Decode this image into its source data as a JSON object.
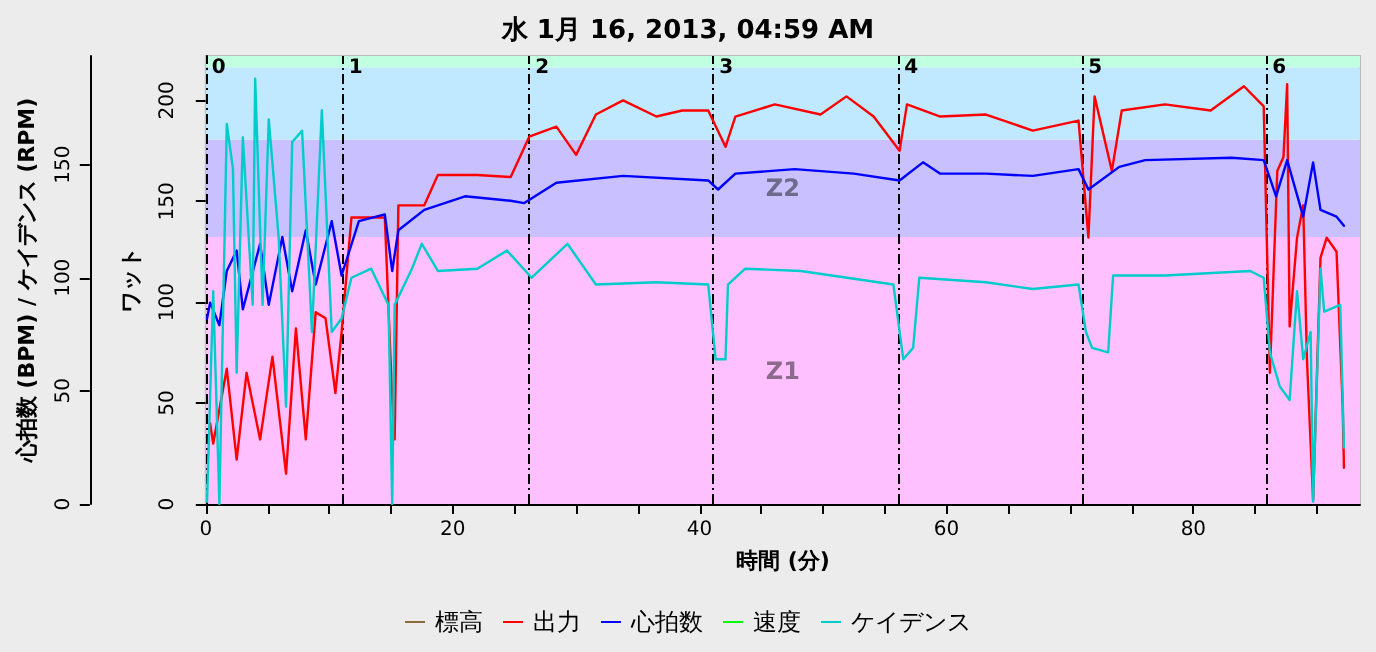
{
  "chart_data": {
    "type": "line",
    "title": "水 1月 16, 2013, 04:59 AM",
    "xlabel": "時間 (分)",
    "ylabel": "ワット",
    "y2label": "心拍数 (BPM) / ケイデンス (RPM)",
    "xlim": [
      0,
      93.5
    ],
    "xticks": [
      0,
      {
        "value": 5,
        "label": null
      },
      {
        "value": 10,
        "label": null
      },
      {
        "value": 15,
        "label": null
      },
      20,
      {
        "value": 25,
        "label": null
      },
      {
        "value": 30,
        "label": null
      },
      {
        "value": 35,
        "label": null
      },
      40,
      {
        "value": 45,
        "label": null
      },
      {
        "value": 50,
        "label": null
      },
      {
        "value": 55,
        "label": null
      },
      60,
      {
        "value": 65,
        "label": null
      },
      {
        "value": 70,
        "label": null
      },
      {
        "value": 75,
        "label": null
      },
      80,
      {
        "value": 85,
        "label": null
      },
      {
        "value": 90,
        "label": null
      }
    ],
    "ylim": [
      0,
      222
    ],
    "yticks": [
      0,
      50,
      100,
      150,
      200
    ],
    "y2lim": [
      0,
      198
    ],
    "y2ticks": [
      0,
      50,
      100,
      150
    ],
    "grid": "y",
    "legend": "bottom",
    "marker": "none",
    "line_style": "solid",
    "series": [
      {
        "name": "標高",
        "color": "#8b6a3c"
      },
      {
        "name": "出力",
        "color": "#ff0000",
        "x": [
          0.35,
          0.6,
          1.7,
          2.5,
          3.3,
          4.4,
          5.4,
          6.5,
          7.3,
          8.1,
          8.9,
          9.7,
          10.5,
          11.0,
          11.8,
          12.9,
          14.5,
          15.1,
          15.3,
          15.6,
          17.7,
          18.8,
          22.0,
          24.7,
          26.2,
          28.4,
          30.0,
          31.6,
          33.8,
          36.5,
          38.6,
          40.7,
          42.1,
          42.9,
          46.1,
          49.8,
          51.9,
          54.1,
          56.2,
          56.8,
          59.5,
          63.2,
          67.0,
          70.7,
          71.5,
          72.0,
          73.4,
          74.2,
          77.7,
          81.4,
          84.1,
          85.7,
          86.2,
          86.8,
          87.3,
          87.6,
          87.8,
          88.4,
          88.9,
          89.2,
          89.7,
          90.3,
          90.8,
          91.6,
          92.1,
          92.2
        ],
        "values": [
          40,
          30,
          67,
          22,
          65,
          32,
          73,
          15,
          87,
          32,
          95,
          92,
          55,
          85,
          142,
          142,
          142,
          52,
          32,
          148,
          148,
          163,
          163,
          162,
          182,
          187,
          173,
          193,
          200,
          192,
          195,
          195,
          177,
          192,
          198,
          193,
          202,
          192,
          175,
          198,
          192,
          193,
          185,
          190,
          132,
          202,
          165,
          195,
          198,
          195,
          207,
          197,
          65,
          165,
          172,
          208,
          88,
          132,
          148,
          72,
          2,
          122,
          132,
          125,
          48,
          18
        ]
      },
      {
        "name": "心拍数",
        "color": "#0000ff",
        "axis": "y2",
        "x": [
          0.1,
          0.35,
          1.1,
          1.7,
          2.5,
          3.0,
          4.4,
          5.1,
          6.2,
          7.0,
          8.1,
          8.9,
          10.2,
          11.0,
          12.4,
          14.5,
          15.1,
          15.6,
          17.7,
          21.0,
          24.7,
          25.8,
          28.4,
          33.8,
          40.7,
          41.5,
          42.9,
          47.7,
          52.5,
          56.2,
          58.1,
          59.5,
          63.2,
          67.0,
          70.7,
          71.5,
          74.0,
          76.1,
          83.1,
          85.7,
          86.7,
          87.6,
          88.9,
          89.7,
          90.3,
          91.6,
          92.2
        ],
        "values": [
          82,
          89,
          79,
          103,
          112,
          86,
          115,
          88,
          118,
          94,
          121,
          97,
          125,
          101,
          125,
          128,
          103,
          121,
          130,
          136,
          134,
          133,
          142,
          145,
          143,
          139,
          146,
          148,
          146,
          143,
          151,
          146,
          146,
          145,
          148,
          139,
          149,
          152,
          153,
          152,
          136,
          152,
          127,
          151,
          130,
          127,
          123
        ]
      },
      {
        "name": "速度",
        "color": "#00ff00"
      },
      {
        "name": "ケイデンス",
        "color": "#00cccc",
        "axis": "y2",
        "x": [
          0.1,
          0.6,
          1.1,
          1.7,
          2.2,
          2.5,
          3.0,
          3.8,
          4.0,
          4.6,
          5.1,
          5.9,
          6.5,
          7.0,
          7.8,
          8.6,
          9.4,
          10.2,
          11.0,
          11.8,
          13.4,
          14.8,
          15.1,
          15.3,
          16.7,
          17.5,
          18.8,
          22.0,
          24.4,
          26.4,
          29.3,
          31.6,
          36.5,
          40.7,
          41.3,
          42.1,
          42.3,
          43.7,
          48.2,
          55.7,
          56.5,
          57.3,
          57.8,
          63.2,
          67.0,
          70.7,
          71.3,
          71.8,
          73.1,
          73.5,
          77.7,
          84.6,
          85.7,
          86.2,
          87.0,
          87.8,
          88.4,
          88.9,
          89.5,
          89.7,
          90.3,
          90.6,
          91.9,
          92.2
        ],
        "values": [
          1,
          94,
          0,
          168,
          148,
          58,
          162,
          88,
          188,
          88,
          170,
          118,
          43,
          160,
          165,
          76,
          174,
          76,
          82,
          100,
          104,
          88,
          0,
          88,
          104,
          115,
          103,
          104,
          112,
          100,
          115,
          97,
          98,
          97,
          64,
          64,
          97,
          104,
          103,
          97,
          64,
          69,
          100,
          98,
          95,
          97,
          76,
          69,
          67,
          101,
          101,
          103,
          100,
          67,
          52,
          46,
          94,
          64,
          76,
          1,
          104,
          85,
          88,
          25
        ]
      }
    ],
    "bands": [
      {
        "axis": "y2",
        "from": 0,
        "to": 118,
        "label": "Z1",
        "color": "#ffc0ff"
      },
      {
        "axis": "y2",
        "from": 118,
        "to": 161,
        "label": "Z2",
        "color": "#c8c0ff"
      },
      {
        "axis": "y2",
        "from": 161,
        "to": 193,
        "color": "#c0e8ff"
      },
      {
        "axis": "y2",
        "from": 193,
        "to": 198,
        "color": "#c0ffe0"
      }
    ],
    "ref_lines": [
      {
        "axis": "x",
        "value": 0
      },
      {
        "axis": "x",
        "value": 11.1
      },
      {
        "axis": "x",
        "value": 26.2
      },
      {
        "axis": "x",
        "value": 41.1
      },
      {
        "axis": "x",
        "value": 56.1
      },
      {
        "axis": "x",
        "value": 71.0
      },
      {
        "axis": "x",
        "value": 85.9
      }
    ],
    "annotations": [
      {
        "text": "0",
        "x": 0,
        "y": 216
      },
      {
        "text": "1",
        "x": 11.1,
        "y": 216
      },
      {
        "text": "2",
        "x": 26.2,
        "y": 216
      },
      {
        "text": "3",
        "x": 41.1,
        "y": 216
      },
      {
        "text": "4",
        "x": 56.1,
        "y": 216
      },
      {
        "text": "5",
        "x": 71.0,
        "y": 216
      },
      {
        "text": "6",
        "x": 85.9,
        "y": 216
      }
    ]
  }
}
